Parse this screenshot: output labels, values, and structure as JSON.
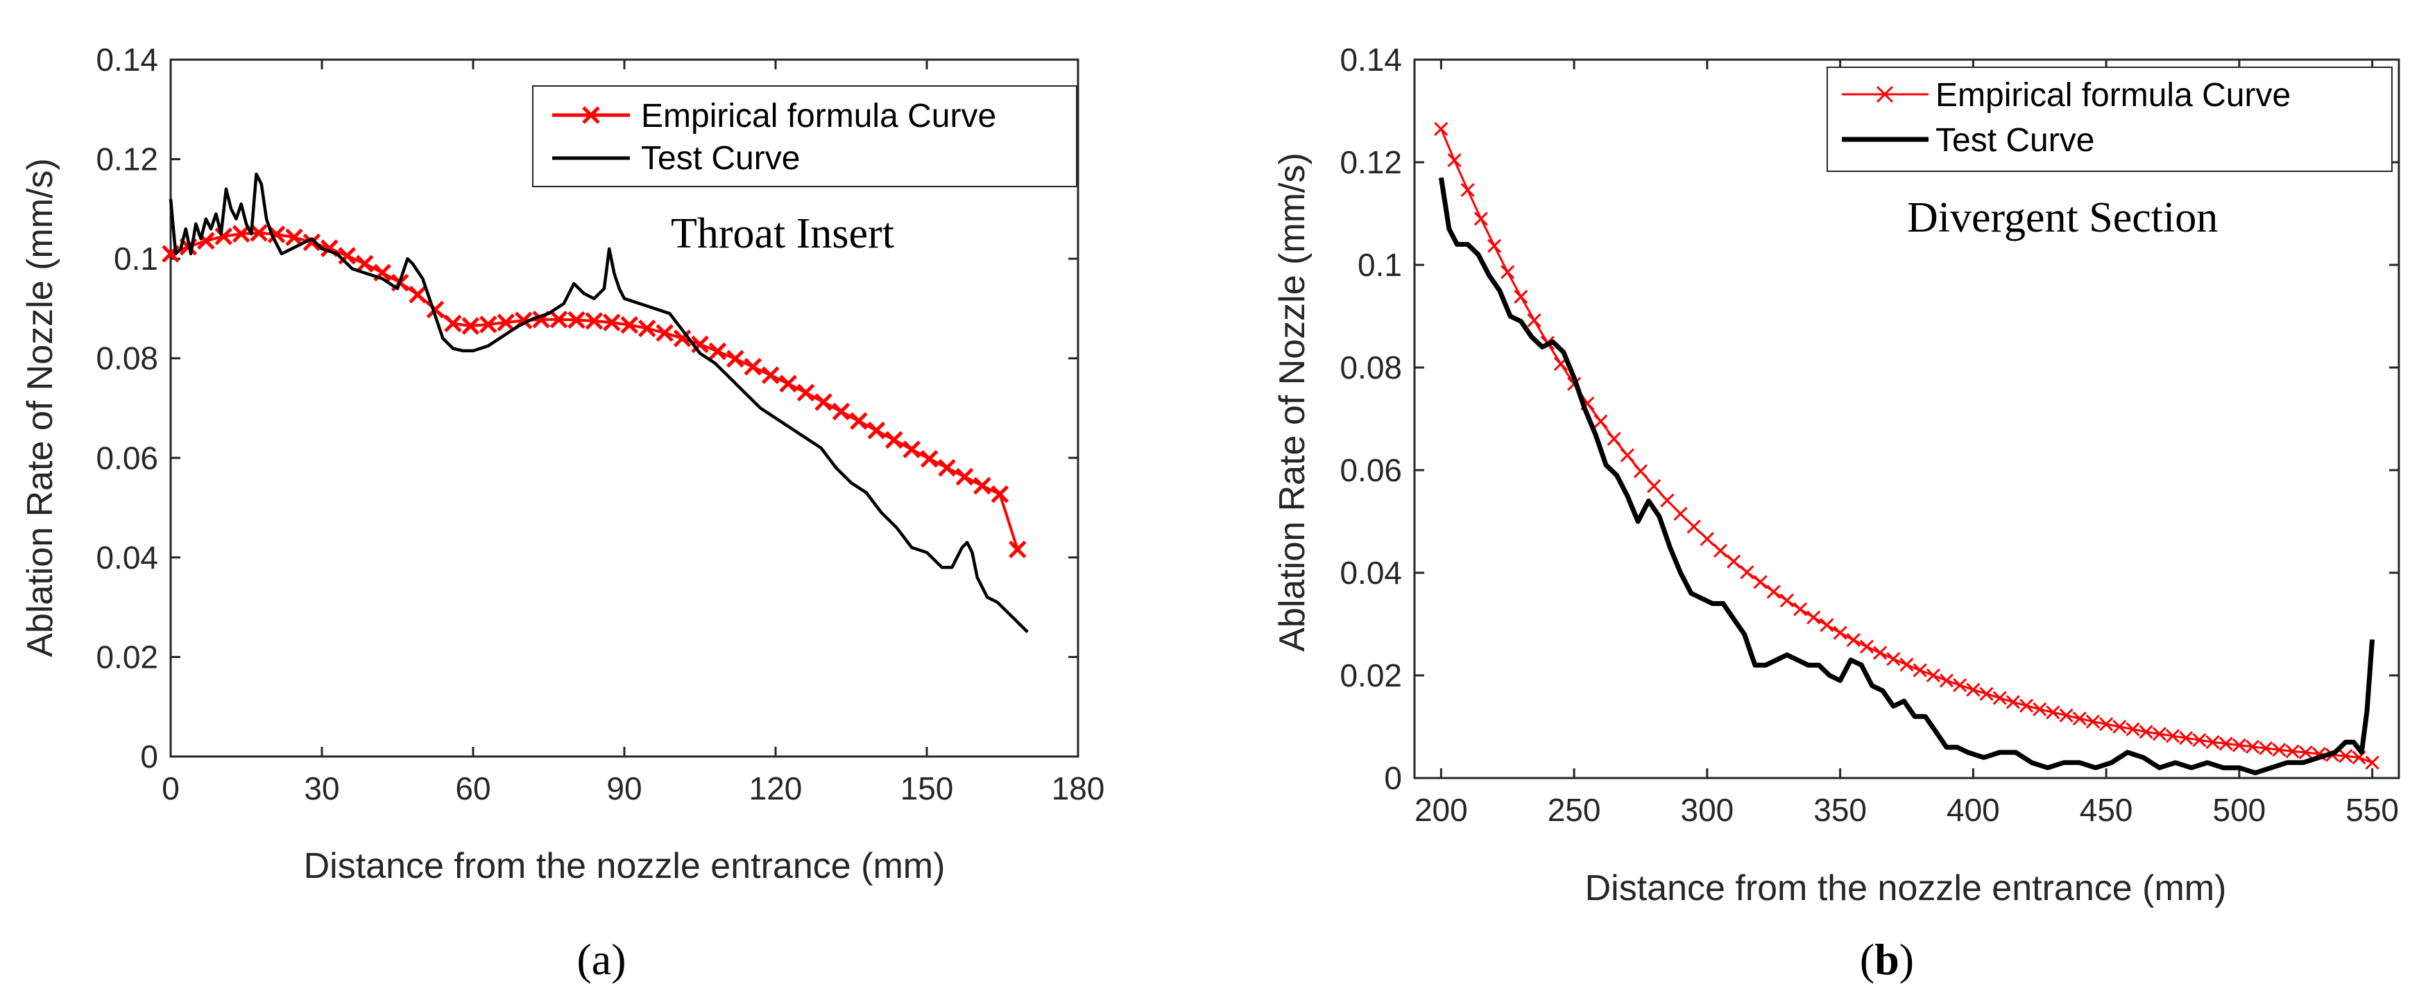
{
  "chart_data": [
    {
      "type": "line",
      "panel": "a",
      "annotation": "Throat Insert",
      "xlabel": "Distance from the nozzle entrance (mm)",
      "ylabel": "Ablation Rate of Nozzle (mm/s)",
      "xlim": [
        0,
        180
      ],
      "ylim": [
        0,
        0.14
      ],
      "xticks": [
        0,
        30,
        60,
        90,
        120,
        150,
        180
      ],
      "yticks": [
        0,
        0.02,
        0.04,
        0.06,
        0.08,
        0.1,
        0.12,
        0.14
      ],
      "xtick_labels": [
        "0",
        "30",
        "60",
        "90",
        "120",
        "150",
        "180"
      ],
      "ytick_labels": [
        "0",
        "0.02",
        "0.04",
        "0.06",
        "0.08",
        "0.1",
        "0.12",
        "0.14"
      ],
      "legend_position": "top-right",
      "series": [
        {
          "name": "Empirical formula Curve",
          "color": "#ff0000",
          "marker": "x",
          "x": [
            0,
            3.5,
            7,
            10.5,
            14,
            17.5,
            21,
            24.5,
            28,
            31.5,
            35,
            38.5,
            42,
            45.5,
            49,
            52.5,
            56,
            59.5,
            63,
            66.5,
            70,
            73.5,
            77,
            80.5,
            84,
            87.5,
            91,
            94.5,
            98,
            101.5,
            105,
            108.5,
            112,
            115.5,
            119,
            122.5,
            126,
            129.5,
            133,
            136.5,
            140,
            143.5,
            147,
            150.5,
            154,
            157.5,
            161,
            164.5,
            168
          ],
          "values": [
            0.101,
            0.1024,
            0.1036,
            0.1045,
            0.105,
            0.1052,
            0.1049,
            0.1043,
            0.1033,
            0.1021,
            0.1006,
            0.099,
            0.0972,
            0.0952,
            0.0928,
            0.0898,
            0.087,
            0.0865,
            0.0868,
            0.0872,
            0.0876,
            0.0878,
            0.0878,
            0.0877,
            0.0875,
            0.0872,
            0.0867,
            0.086,
            0.0851,
            0.084,
            0.0828,
            0.0814,
            0.0799,
            0.0783,
            0.0766,
            0.0749,
            0.0731,
            0.0712,
            0.0693,
            0.0674,
            0.0655,
            0.0636,
            0.0617,
            0.0598,
            0.058,
            0.0562,
            0.0544,
            0.0527,
            0.0416
          ]
        },
        {
          "name": "Test Curve",
          "color": "#000000",
          "marker": "none",
          "x": [
            0,
            1,
            2,
            3,
            4,
            5,
            6,
            7,
            8,
            9,
            10,
            11,
            12,
            13,
            14,
            15,
            16,
            17,
            18,
            19,
            20,
            22,
            24,
            26,
            28,
            30,
            33,
            36,
            39,
            42,
            45,
            47,
            48,
            50,
            52,
            54,
            56,
            58,
            60,
            63,
            66,
            69,
            72,
            75,
            78,
            80,
            82,
            84,
            86,
            87,
            88,
            89,
            90,
            93,
            96,
            99,
            102,
            105,
            108,
            111,
            114,
            117,
            120,
            123,
            126,
            129,
            132,
            135,
            138,
            141,
            144,
            147,
            150,
            153,
            155,
            157,
            158,
            159,
            160,
            162,
            164,
            166,
            168,
            170
          ],
          "values": [
            0.112,
            0.101,
            0.102,
            0.106,
            0.101,
            0.107,
            0.104,
            0.108,
            0.106,
            0.109,
            0.105,
            0.114,
            0.11,
            0.108,
            0.111,
            0.107,
            0.105,
            0.117,
            0.115,
            0.108,
            0.105,
            0.101,
            0.102,
            0.103,
            0.104,
            0.102,
            0.101,
            0.098,
            0.097,
            0.096,
            0.094,
            0.1,
            0.099,
            0.096,
            0.09,
            0.084,
            0.082,
            0.0815,
            0.0815,
            0.0825,
            0.0845,
            0.0865,
            0.088,
            0.089,
            0.091,
            0.095,
            0.093,
            0.092,
            0.094,
            0.102,
            0.097,
            0.094,
            0.092,
            0.091,
            0.09,
            0.089,
            0.085,
            0.081,
            0.079,
            0.076,
            0.073,
            0.07,
            0.068,
            0.066,
            0.064,
            0.062,
            0.058,
            0.055,
            0.053,
            0.049,
            0.046,
            0.042,
            0.041,
            0.038,
            0.038,
            0.042,
            0.043,
            0.041,
            0.036,
            0.032,
            0.031,
            0.029,
            0.027,
            0.025
          ]
        }
      ]
    },
    {
      "type": "line",
      "panel": "b",
      "annotation": "Divergent Section",
      "xlabel": "Distance from the nozzle entrance (mm)",
      "ylabel": "Ablation Rate of Nozzle (mm/s)",
      "xlim": [
        190,
        560
      ],
      "ylim": [
        0,
        0.14
      ],
      "xticks": [
        200,
        250,
        300,
        350,
        400,
        450,
        500,
        550
      ],
      "yticks": [
        0,
        0.02,
        0.04,
        0.06,
        0.08,
        0.1,
        0.12,
        0.14
      ],
      "xtick_labels": [
        "200",
        "250",
        "300",
        "350",
        "400",
        "450",
        "500",
        "550"
      ],
      "ytick_labels": [
        "0",
        "0.02",
        "0.04",
        "0.06",
        "0.08",
        "0.1",
        "0.12",
        "0.14"
      ],
      "legend_position": "top-right",
      "series": [
        {
          "name": "Empirical formula Curve",
          "color": "#ff0000",
          "marker": "x",
          "x": [
            200,
            205,
            210,
            215,
            220,
            225,
            230,
            235,
            240,
            245,
            250,
            255,
            260,
            265,
            270,
            275,
            280,
            285,
            290,
            295,
            300,
            305,
            310,
            315,
            320,
            325,
            330,
            335,
            340,
            345,
            350,
            355,
            360,
            365,
            370,
            375,
            380,
            385,
            390,
            395,
            400,
            405,
            410,
            415,
            420,
            425,
            430,
            435,
            440,
            445,
            450,
            455,
            460,
            465,
            470,
            475,
            480,
            485,
            490,
            495,
            500,
            505,
            510,
            515,
            520,
            525,
            530,
            535,
            540,
            545,
            550
          ],
          "values": [
            0.1265,
            0.1204,
            0.1146,
            0.109,
            0.1037,
            0.0986,
            0.0938,
            0.0892,
            0.0848,
            0.0807,
            0.0768,
            0.073,
            0.0695,
            0.0661,
            0.0629,
            0.0598,
            0.0569,
            0.0541,
            0.0515,
            0.049,
            0.0466,
            0.0443,
            0.0422,
            0.0401,
            0.0382,
            0.0363,
            0.0346,
            0.0329,
            0.0313,
            0.0298,
            0.0283,
            0.0269,
            0.0256,
            0.0244,
            0.0232,
            0.0221,
            0.021,
            0.02,
            0.019,
            0.0181,
            0.0172,
            0.0164,
            0.0156,
            0.0148,
            0.0141,
            0.0134,
            0.0128,
            0.0122,
            0.0116,
            0.011,
            0.0105,
            0.01,
            0.0095,
            0.009,
            0.0086,
            0.0082,
            0.0078,
            0.0074,
            0.007,
            0.0067,
            0.0064,
            0.0061,
            0.0058,
            0.0055,
            0.0052,
            0.005,
            0.0047,
            0.0045,
            0.0043,
            0.004,
            0.003
          ]
        },
        {
          "name": "Test Curve",
          "color": "#000000",
          "marker": "none",
          "x": [
            200,
            203,
            206,
            210,
            214,
            218,
            222,
            226,
            230,
            234,
            238,
            242,
            246,
            250,
            254,
            258,
            262,
            266,
            270,
            274,
            278,
            282,
            286,
            290,
            294,
            298,
            302,
            306,
            310,
            314,
            318,
            322,
            326,
            330,
            334,
            338,
            342,
            346,
            350,
            354,
            358,
            362,
            366,
            370,
            374,
            378,
            382,
            386,
            390,
            394,
            398,
            404,
            410,
            416,
            422,
            428,
            434,
            440,
            446,
            452,
            458,
            464,
            470,
            476,
            482,
            488,
            494,
            500,
            506,
            512,
            518,
            524,
            530,
            536,
            540,
            543,
            546,
            548,
            550
          ],
          "values": [
            0.117,
            0.107,
            0.104,
            0.104,
            0.102,
            0.098,
            0.095,
            0.09,
            0.089,
            0.086,
            0.084,
            0.085,
            0.083,
            0.078,
            0.072,
            0.067,
            0.061,
            0.059,
            0.055,
            0.05,
            0.054,
            0.051,
            0.045,
            0.04,
            0.036,
            0.035,
            0.034,
            0.034,
            0.031,
            0.028,
            0.022,
            0.022,
            0.023,
            0.024,
            0.023,
            0.022,
            0.022,
            0.02,
            0.019,
            0.023,
            0.022,
            0.018,
            0.017,
            0.014,
            0.015,
            0.012,
            0.012,
            0.009,
            0.006,
            0.006,
            0.005,
            0.004,
            0.005,
            0.005,
            0.003,
            0.002,
            0.003,
            0.003,
            0.002,
            0.003,
            0.005,
            0.004,
            0.002,
            0.003,
            0.002,
            0.003,
            0.002,
            0.002,
            0.001,
            0.002,
            0.003,
            0.003,
            0.004,
            0.005,
            0.007,
            0.007,
            0.005,
            0.013,
            0.027
          ]
        }
      ]
    }
  ],
  "panels": {
    "a_label_open": "(",
    "a_label_letter": "a",
    "a_label_close": ")",
    "b_label_open": "(",
    "b_label_letter": "b",
    "b_label_close": ")"
  }
}
